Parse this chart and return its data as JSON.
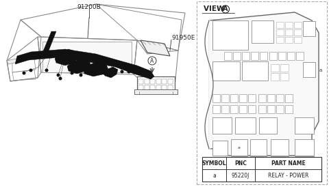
{
  "bg_color": "#ffffff",
  "line_color": "#bbbbbb",
  "dark_color": "#444444",
  "mid_color": "#888888",
  "table_headers": [
    "SYMBOL",
    "PNC",
    "PART NAME"
  ],
  "table_row": [
    "a",
    "95220J",
    "RELAY - POWER"
  ],
  "label_91200B": "91200B",
  "label_91950E": "91950E",
  "label_A": "A"
}
